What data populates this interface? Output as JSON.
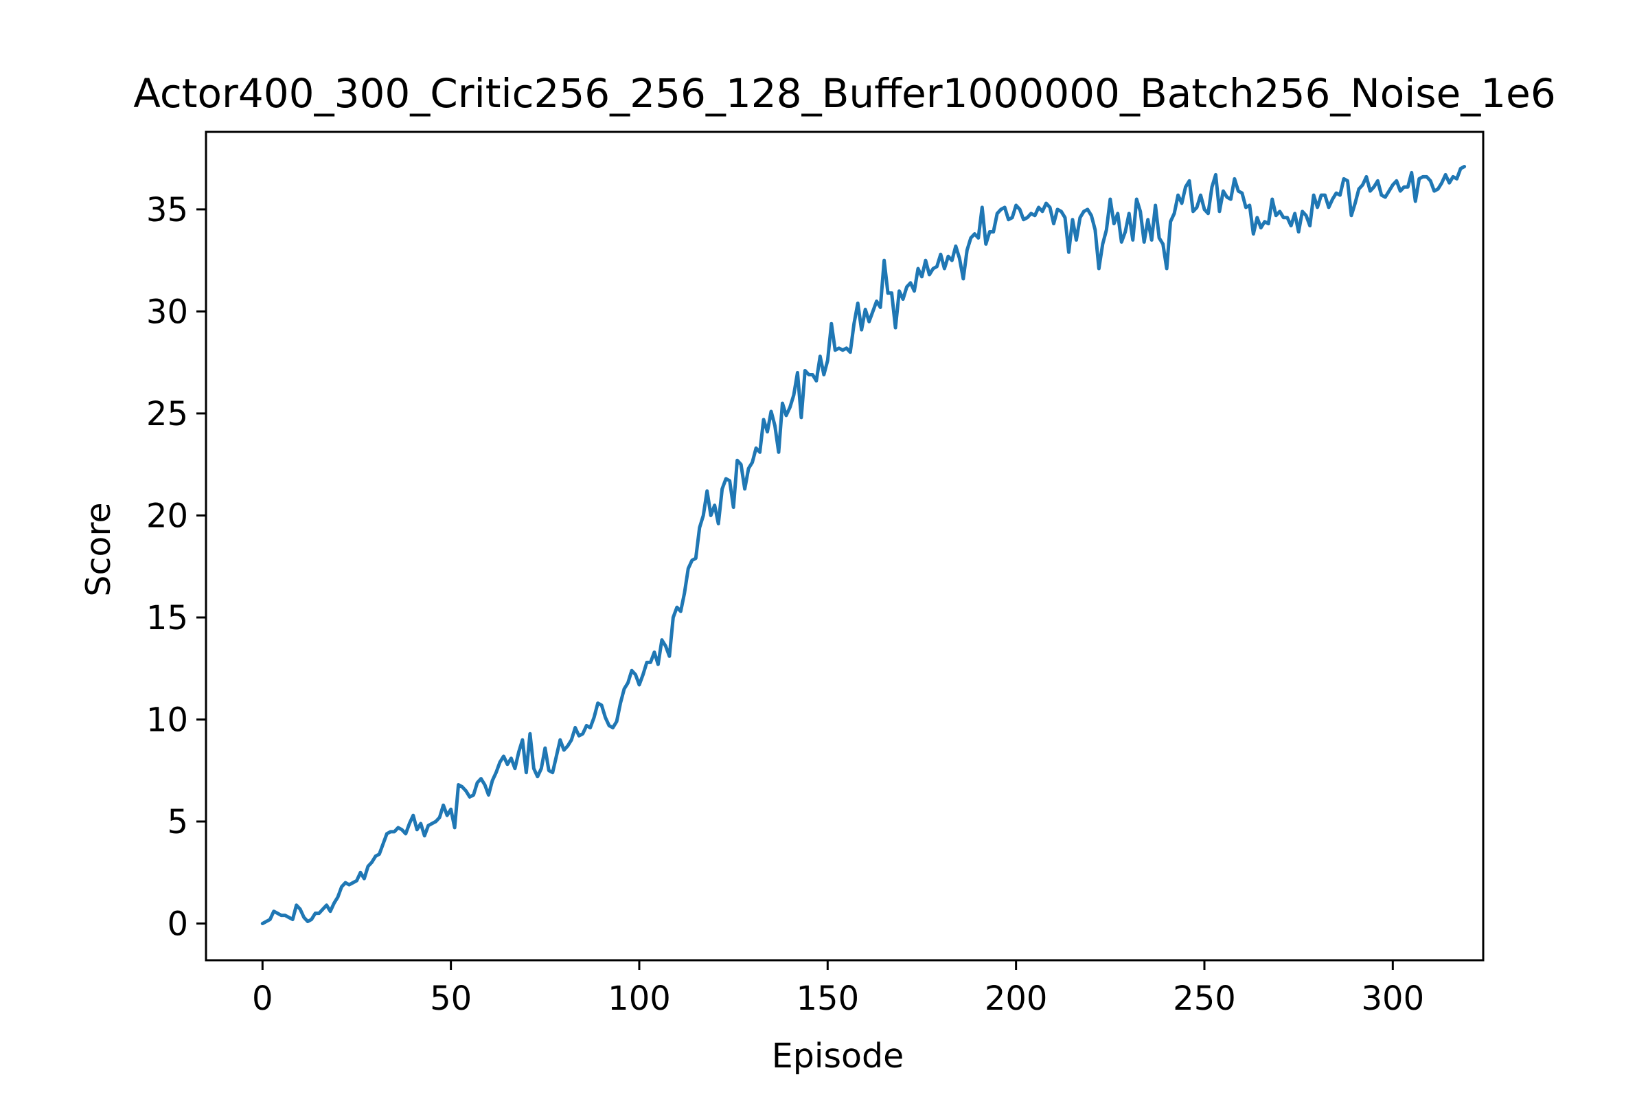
{
  "chart_data": {
    "type": "line",
    "title": "Actor400_300_Critic256_256_128_Buffer1000000_Batch256_Noise_1e6",
    "xlabel": "Episode",
    "ylabel": "Score",
    "xlim": [
      -15,
      324
    ],
    "ylim": [
      -1.8,
      38.8
    ],
    "xticks": [
      0,
      50,
      100,
      150,
      200,
      250,
      300
    ],
    "yticks": [
      0,
      5,
      10,
      15,
      20,
      25,
      30,
      35
    ],
    "grid": false,
    "legend": "none",
    "series": [
      {
        "color": "#1f77b4",
        "x_start": 0,
        "x_step": 1,
        "values": [
          0.0,
          0.1,
          0.2,
          0.6,
          0.5,
          0.4,
          0.4,
          0.3,
          0.2,
          0.9,
          0.7,
          0.3,
          0.1,
          0.2,
          0.5,
          0.5,
          0.7,
          0.9,
          0.6,
          1.0,
          1.3,
          1.8,
          2.0,
          1.9,
          2.0,
          2.1,
          2.5,
          2.2,
          2.8,
          3.0,
          3.3,
          3.4,
          3.9,
          4.4,
          4.5,
          4.5,
          4.7,
          4.6,
          4.4,
          4.9,
          5.3,
          4.6,
          4.9,
          4.3,
          4.8,
          4.9,
          5.0,
          5.2,
          5.8,
          5.3,
          5.6,
          4.7,
          6.8,
          6.7,
          6.5,
          6.2,
          6.3,
          6.9,
          7.1,
          6.8,
          6.3,
          7.0,
          7.4,
          7.9,
          8.2,
          7.8,
          8.1,
          7.6,
          8.4,
          9.0,
          7.4,
          9.3,
          7.6,
          7.2,
          7.6,
          8.6,
          7.5,
          7.4,
          8.2,
          9.0,
          8.5,
          8.7,
          9.0,
          9.6,
          9.2,
          9.3,
          9.7,
          9.6,
          10.1,
          10.8,
          10.7,
          10.1,
          9.7,
          9.6,
          9.9,
          10.8,
          11.5,
          11.8,
          12.4,
          12.2,
          11.7,
          12.2,
          12.8,
          12.8,
          13.3,
          12.7,
          13.9,
          13.6,
          13.1,
          15.0,
          15.5,
          15.3,
          16.2,
          17.4,
          17.8,
          17.9,
          19.4,
          20.0,
          21.2,
          20.0,
          20.5,
          19.6,
          21.3,
          21.8,
          21.7,
          20.4,
          22.7,
          22.5,
          21.3,
          22.3,
          22.6,
          23.3,
          23.1,
          24.7,
          24.1,
          25.1,
          24.4,
          23.1,
          25.5,
          24.9,
          25.3,
          25.9,
          27.0,
          24.8,
          27.1,
          26.9,
          26.9,
          26.6,
          27.8,
          26.9,
          27.6,
          29.4,
          28.1,
          28.2,
          28.1,
          28.2,
          28.0,
          29.4,
          30.4,
          29.1,
          30.1,
          29.5,
          30.0,
          30.5,
          30.2,
          32.5,
          30.9,
          30.9,
          29.2,
          31.0,
          30.6,
          31.2,
          31.4,
          31.0,
          32.1,
          31.7,
          32.5,
          31.8,
          32.1,
          32.2,
          32.8,
          32.1,
          32.7,
          32.5,
          33.2,
          32.6,
          31.6,
          33.0,
          33.6,
          33.8,
          33.6,
          35.1,
          33.3,
          33.9,
          33.9,
          34.8,
          35.0,
          35.1,
          34.5,
          34.6,
          35.2,
          35.0,
          34.5,
          34.6,
          34.8,
          34.7,
          35.1,
          34.9,
          35.3,
          35.1,
          34.3,
          35.0,
          34.9,
          34.6,
          32.9,
          34.5,
          33.5,
          34.6,
          34.9,
          35.0,
          34.7,
          34.0,
          32.1,
          33.3,
          34.0,
          35.5,
          34.3,
          34.8,
          33.4,
          33.9,
          34.8,
          33.5,
          35.5,
          34.9,
          33.4,
          34.5,
          33.5,
          35.2,
          33.6,
          33.3,
          32.1,
          34.4,
          34.8,
          35.7,
          35.3,
          36.1,
          36.4,
          34.9,
          35.1,
          35.7,
          35.0,
          34.8,
          36.1,
          36.7,
          34.9,
          35.9,
          35.6,
          35.5,
          36.5,
          35.9,
          35.8,
          35.1,
          35.2,
          33.8,
          34.6,
          34.1,
          34.4,
          34.3,
          35.5,
          34.7,
          34.9,
          34.6,
          34.6,
          34.2,
          34.8,
          33.9,
          34.9,
          34.7,
          34.2,
          35.7,
          35.1,
          35.7,
          35.7,
          35.1,
          35.5,
          35.8,
          35.7,
          36.5,
          36.4,
          34.7,
          35.3,
          36.0,
          36.2,
          36.6,
          35.9,
          36.1,
          36.4,
          35.7,
          35.6,
          35.9,
          36.2,
          36.4,
          35.9,
          36.1,
          36.1,
          36.8,
          35.4,
          36.5,
          36.6,
          36.6,
          36.4,
          35.9,
          36.0,
          36.3,
          36.7,
          36.3,
          36.6,
          36.5,
          37.0,
          37.1
        ]
      }
    ]
  }
}
